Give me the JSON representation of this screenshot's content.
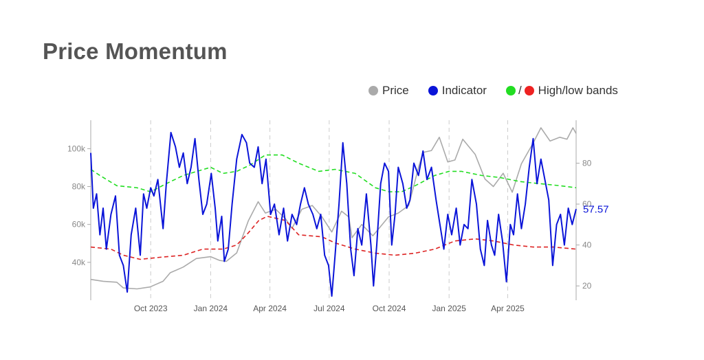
{
  "title": "Price Momentum",
  "legend": {
    "price_label": "Price",
    "indicator_label": "Indicator",
    "bands_label": "High/low bands",
    "bands_sep": "/"
  },
  "colors": {
    "price": "#aaaaaa",
    "indicator": "#0a14d8",
    "high_band": "#22dd22",
    "low_band": "#dd2222",
    "axis": "#aaaaaa",
    "grid": "#cccccc"
  },
  "chart_data": {
    "type": "line",
    "x_range": [
      "2023-07-01",
      "2025-07-15"
    ],
    "x_ticks": [
      {
        "date": "2023-10-01",
        "label": "Oct 2023"
      },
      {
        "date": "2024-01-01",
        "label": "Jan 2024"
      },
      {
        "date": "2024-04-01",
        "label": "Apr 2024"
      },
      {
        "date": "2024-07-01",
        "label": "Jul 2024"
      },
      {
        "date": "2024-10-01",
        "label": "Oct 2024"
      },
      {
        "date": "2025-01-01",
        "label": "Jan 2025"
      },
      {
        "date": "2025-04-01",
        "label": "Apr 2025"
      }
    ],
    "y_left": {
      "range": [
        20000,
        115000
      ],
      "ticks": [
        {
          "value": 40000,
          "label": "40k"
        },
        {
          "value": 60000,
          "label": "60k"
        },
        {
          "value": 80000,
          "label": "80k"
        },
        {
          "value": 100000,
          "label": "100k"
        }
      ]
    },
    "y_right": {
      "range": [
        13,
        101
      ],
      "ticks": [
        {
          "value": 20,
          "label": "20"
        },
        {
          "value": 40,
          "label": "40"
        },
        {
          "value": 60,
          "label": "60"
        },
        {
          "value": 80,
          "label": "80"
        }
      ]
    },
    "last_indicator_label": "57.57",
    "series": [
      {
        "name": "Price",
        "axis": "left",
        "points": [
          [
            "2023-07-01",
            31000
          ],
          [
            "2023-07-20",
            30000
          ],
          [
            "2023-08-10",
            29500
          ],
          [
            "2023-08-20",
            26500
          ],
          [
            "2023-09-10",
            26000
          ],
          [
            "2023-09-30",
            27000
          ],
          [
            "2023-10-20",
            30000
          ],
          [
            "2023-10-31",
            34500
          ],
          [
            "2023-11-20",
            37500
          ],
          [
            "2023-12-10",
            42000
          ],
          [
            "2024-01-01",
            43000
          ],
          [
            "2024-01-15",
            41000
          ],
          [
            "2024-01-25",
            40500
          ],
          [
            "2024-02-10",
            45000
          ],
          [
            "2024-02-28",
            62000
          ],
          [
            "2024-03-14",
            72000
          ],
          [
            "2024-03-25",
            66000
          ],
          [
            "2024-04-10",
            68000
          ],
          [
            "2024-04-25",
            63000
          ],
          [
            "2024-05-05",
            58000
          ],
          [
            "2024-05-20",
            68000
          ],
          [
            "2024-06-05",
            70000
          ],
          [
            "2024-06-20",
            64000
          ],
          [
            "2024-07-05",
            56000
          ],
          [
            "2024-07-20",
            67000
          ],
          [
            "2024-07-31",
            64000
          ],
          [
            "2024-08-05",
            53000
          ],
          [
            "2024-08-20",
            60000
          ],
          [
            "2024-09-06",
            54000
          ],
          [
            "2024-09-30",
            64000
          ],
          [
            "2024-10-15",
            66000
          ],
          [
            "2024-10-31",
            70000
          ],
          [
            "2024-11-15",
            90000
          ],
          [
            "2024-11-22",
            98000
          ],
          [
            "2024-12-05",
            99000
          ],
          [
            "2024-12-17",
            106000
          ],
          [
            "2024-12-30",
            93000
          ],
          [
            "2025-01-10",
            94000
          ],
          [
            "2025-01-22",
            105000
          ],
          [
            "2025-02-10",
            97000
          ],
          [
            "2025-02-25",
            84000
          ],
          [
            "2025-03-10",
            80000
          ],
          [
            "2025-03-25",
            87000
          ],
          [
            "2025-04-08",
            77000
          ],
          [
            "2025-04-22",
            92000
          ],
          [
            "2025-05-10",
            103000
          ],
          [
            "2025-05-22",
            111000
          ],
          [
            "2025-06-05",
            104000
          ],
          [
            "2025-06-20",
            106000
          ],
          [
            "2025-07-01",
            105000
          ],
          [
            "2025-07-10",
            111000
          ],
          [
            "2025-07-15",
            108000
          ]
        ]
      },
      {
        "name": "Indicator",
        "axis": "right",
        "points": [
          [
            "2023-07-01",
            85
          ],
          [
            "2023-07-05",
            58
          ],
          [
            "2023-07-10",
            65
          ],
          [
            "2023-07-15",
            45
          ],
          [
            "2023-07-20",
            58
          ],
          [
            "2023-07-25",
            38
          ],
          [
            "2023-08-01",
            55
          ],
          [
            "2023-08-08",
            64
          ],
          [
            "2023-08-14",
            35
          ],
          [
            "2023-08-20",
            30
          ],
          [
            "2023-08-26",
            17
          ],
          [
            "2023-09-01",
            45
          ],
          [
            "2023-09-08",
            58
          ],
          [
            "2023-09-15",
            35
          ],
          [
            "2023-09-20",
            65
          ],
          [
            "2023-09-25",
            58
          ],
          [
            "2023-10-01",
            68
          ],
          [
            "2023-10-06",
            64
          ],
          [
            "2023-10-12",
            72
          ],
          [
            "2023-10-20",
            48
          ],
          [
            "2023-10-25",
            70
          ],
          [
            "2023-11-01",
            95
          ],
          [
            "2023-11-08",
            88
          ],
          [
            "2023-11-14",
            78
          ],
          [
            "2023-11-20",
            85
          ],
          [
            "2023-11-26",
            70
          ],
          [
            "2023-12-02",
            78
          ],
          [
            "2023-12-08",
            92
          ],
          [
            "2023-12-14",
            72
          ],
          [
            "2023-12-20",
            55
          ],
          [
            "2023-12-26",
            60
          ],
          [
            "2024-01-02",
            75
          ],
          [
            "2024-01-08",
            58
          ],
          [
            "2024-01-12",
            42
          ],
          [
            "2024-01-18",
            54
          ],
          [
            "2024-01-22",
            32
          ],
          [
            "2024-01-28",
            38
          ],
          [
            "2024-02-03",
            60
          ],
          [
            "2024-02-10",
            82
          ],
          [
            "2024-02-18",
            94
          ],
          [
            "2024-02-25",
            90
          ],
          [
            "2024-03-01",
            80
          ],
          [
            "2024-03-08",
            78
          ],
          [
            "2024-03-14",
            88
          ],
          [
            "2024-03-20",
            70
          ],
          [
            "2024-03-26",
            82
          ],
          [
            "2024-04-02",
            55
          ],
          [
            "2024-04-08",
            60
          ],
          [
            "2024-04-15",
            45
          ],
          [
            "2024-04-22",
            58
          ],
          [
            "2024-04-28",
            42
          ],
          [
            "2024-05-05",
            55
          ],
          [
            "2024-05-12",
            50
          ],
          [
            "2024-05-18",
            60
          ],
          [
            "2024-05-24",
            68
          ],
          [
            "2024-05-30",
            60
          ],
          [
            "2024-06-06",
            55
          ],
          [
            "2024-06-12",
            48
          ],
          [
            "2024-06-18",
            55
          ],
          [
            "2024-06-24",
            35
          ],
          [
            "2024-06-30",
            30
          ],
          [
            "2024-07-05",
            15
          ],
          [
            "2024-07-10",
            35
          ],
          [
            "2024-07-16",
            60
          ],
          [
            "2024-07-22",
            90
          ],
          [
            "2024-07-28",
            70
          ],
          [
            "2024-08-03",
            38
          ],
          [
            "2024-08-08",
            25
          ],
          [
            "2024-08-14",
            48
          ],
          [
            "2024-08-20",
            40
          ],
          [
            "2024-08-27",
            65
          ],
          [
            "2024-09-03",
            40
          ],
          [
            "2024-09-07",
            20
          ],
          [
            "2024-09-12",
            40
          ],
          [
            "2024-09-18",
            70
          ],
          [
            "2024-09-24",
            80
          ],
          [
            "2024-09-30",
            76
          ],
          [
            "2024-10-05",
            40
          ],
          [
            "2024-10-10",
            55
          ],
          [
            "2024-10-15",
            78
          ],
          [
            "2024-10-22",
            70
          ],
          [
            "2024-10-28",
            58
          ],
          [
            "2024-11-02",
            62
          ],
          [
            "2024-11-08",
            80
          ],
          [
            "2024-11-15",
            74
          ],
          [
            "2024-11-22",
            86
          ],
          [
            "2024-11-28",
            72
          ],
          [
            "2024-12-05",
            78
          ],
          [
            "2024-12-12",
            62
          ],
          [
            "2024-12-18",
            50
          ],
          [
            "2024-12-24",
            38
          ],
          [
            "2024-12-30",
            55
          ],
          [
            "2025-01-05",
            45
          ],
          [
            "2025-01-12",
            58
          ],
          [
            "2025-01-18",
            40
          ],
          [
            "2025-01-24",
            50
          ],
          [
            "2025-01-30",
            48
          ],
          [
            "2025-02-05",
            72
          ],
          [
            "2025-02-12",
            60
          ],
          [
            "2025-02-18",
            38
          ],
          [
            "2025-02-24",
            30
          ],
          [
            "2025-03-01",
            52
          ],
          [
            "2025-03-07",
            40
          ],
          [
            "2025-03-12",
            35
          ],
          [
            "2025-03-18",
            55
          ],
          [
            "2025-03-24",
            42
          ],
          [
            "2025-03-30",
            22
          ],
          [
            "2025-04-05",
            50
          ],
          [
            "2025-04-10",
            45
          ],
          [
            "2025-04-16",
            65
          ],
          [
            "2025-04-22",
            48
          ],
          [
            "2025-04-28",
            60
          ],
          [
            "2025-05-04",
            78
          ],
          [
            "2025-05-10",
            92
          ],
          [
            "2025-05-16",
            70
          ],
          [
            "2025-05-22",
            82
          ],
          [
            "2025-05-28",
            72
          ],
          [
            "2025-06-03",
            62
          ],
          [
            "2025-06-09",
            30
          ],
          [
            "2025-06-15",
            50
          ],
          [
            "2025-06-21",
            55
          ],
          [
            "2025-06-27",
            40
          ],
          [
            "2025-07-03",
            58
          ],
          [
            "2025-07-09",
            50
          ],
          [
            "2025-07-15",
            57.57
          ]
        ]
      },
      {
        "name": "High band",
        "axis": "right",
        "points": [
          [
            "2023-07-01",
            77
          ],
          [
            "2023-07-15",
            74
          ],
          [
            "2023-08-10",
            69
          ],
          [
            "2023-09-10",
            68
          ],
          [
            "2023-10-01",
            66
          ],
          [
            "2023-10-25",
            70
          ],
          [
            "2023-11-20",
            74
          ],
          [
            "2024-01-01",
            78
          ],
          [
            "2024-01-20",
            75
          ],
          [
            "2024-02-10",
            76
          ],
          [
            "2024-03-01",
            79
          ],
          [
            "2024-03-25",
            84
          ],
          [
            "2024-04-20",
            84
          ],
          [
            "2024-05-15",
            80
          ],
          [
            "2024-06-15",
            76
          ],
          [
            "2024-07-10",
            77
          ],
          [
            "2024-08-10",
            75
          ],
          [
            "2024-09-01",
            70
          ],
          [
            "2024-09-10",
            68
          ],
          [
            "2024-10-01",
            66
          ],
          [
            "2024-10-20",
            66
          ],
          [
            "2024-11-10",
            69
          ],
          [
            "2024-12-10",
            74
          ],
          [
            "2025-01-01",
            76
          ],
          [
            "2025-01-20",
            76
          ],
          [
            "2025-02-20",
            74
          ],
          [
            "2025-03-20",
            73
          ],
          [
            "2025-04-20",
            71
          ],
          [
            "2025-05-20",
            70
          ],
          [
            "2025-06-20",
            69
          ],
          [
            "2025-07-15",
            68
          ]
        ]
      },
      {
        "name": "Low band",
        "axis": "right",
        "points": [
          [
            "2023-07-01",
            39
          ],
          [
            "2023-08-01",
            38
          ],
          [
            "2023-08-20",
            35
          ],
          [
            "2023-09-15",
            33
          ],
          [
            "2023-10-15",
            34
          ],
          [
            "2023-11-20",
            35
          ],
          [
            "2023-12-20",
            38
          ],
          [
            "2024-01-20",
            38
          ],
          [
            "2024-02-10",
            40
          ],
          [
            "2024-02-28",
            46
          ],
          [
            "2024-03-15",
            52
          ],
          [
            "2024-03-28",
            54
          ],
          [
            "2024-04-25",
            52
          ],
          [
            "2024-05-15",
            45
          ],
          [
            "2024-06-20",
            44
          ],
          [
            "2024-07-10",
            41
          ],
          [
            "2024-08-10",
            38
          ],
          [
            "2024-09-10",
            36
          ],
          [
            "2024-10-10",
            35
          ],
          [
            "2024-11-10",
            36
          ],
          [
            "2024-12-10",
            38
          ],
          [
            "2025-01-10",
            42
          ],
          [
            "2025-02-10",
            43
          ],
          [
            "2025-03-10",
            42
          ],
          [
            "2025-04-10",
            40
          ],
          [
            "2025-05-10",
            39
          ],
          [
            "2025-06-10",
            39
          ],
          [
            "2025-07-15",
            38
          ]
        ]
      }
    ]
  }
}
